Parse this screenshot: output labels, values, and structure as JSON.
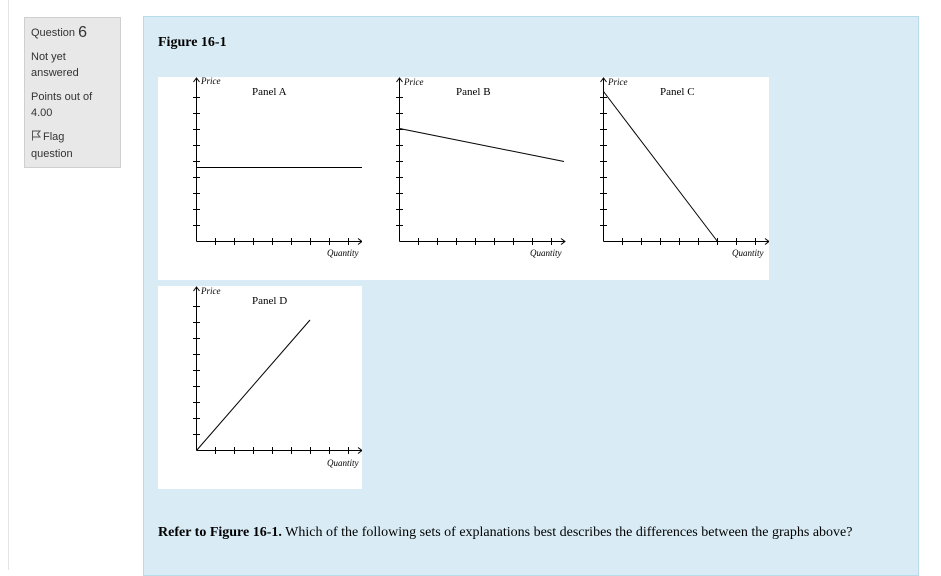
{
  "info": {
    "question_label": "Question",
    "question_number": "6",
    "status_line1": "Not yet",
    "status_line2": "answered",
    "points_line1": "Points out of",
    "points_line2": "4.00",
    "flag_line1": "Flag",
    "flag_line2": "question",
    "flag_icon": "flag-icon"
  },
  "figure": {
    "title": "Figure 16-1",
    "y_axis_label": "Price",
    "x_axis_label": "Quantity",
    "panels": [
      {
        "label": "Panel A",
        "curve": "horizontal"
      },
      {
        "label": "Panel B",
        "curve": "slightly-downward-sloping"
      },
      {
        "label": "Panel C",
        "curve": "steep-downward-sloping"
      },
      {
        "label": "Panel D",
        "curve": "upward-sloping"
      }
    ]
  },
  "question": {
    "bold_prefix": "Refer to Figure 16-1.",
    "text": " Which of the following sets of explanations best describes the differences between the graphs above?"
  },
  "colors": {
    "formulation_bg": "#d9ecf5",
    "info_bg": "#e8e8e8"
  }
}
